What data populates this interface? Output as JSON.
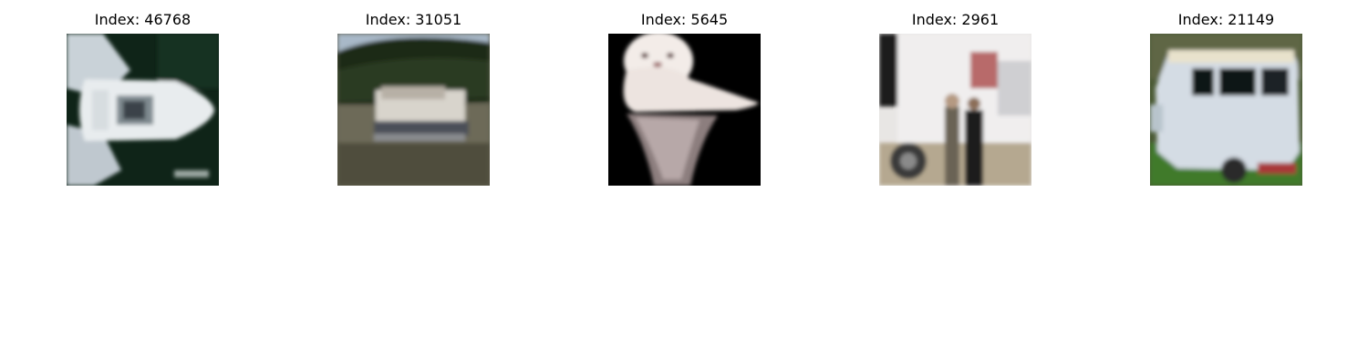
{
  "panels": [
    {
      "title": "Index: 46768",
      "subject": "white speedboat seen from above on dark green water"
    },
    {
      "title": "Index: 31051",
      "subject": "white houseboat on a lake with a forested shore"
    },
    {
      "title": "Index: 5645",
      "subject": "white fluffy bird with reflection on black background"
    },
    {
      "title": "Index: 2961",
      "subject": "people standing beside a white truck"
    },
    {
      "title": "Index: 21149",
      "subject": "pale blue vintage van parked on grass"
    }
  ]
}
